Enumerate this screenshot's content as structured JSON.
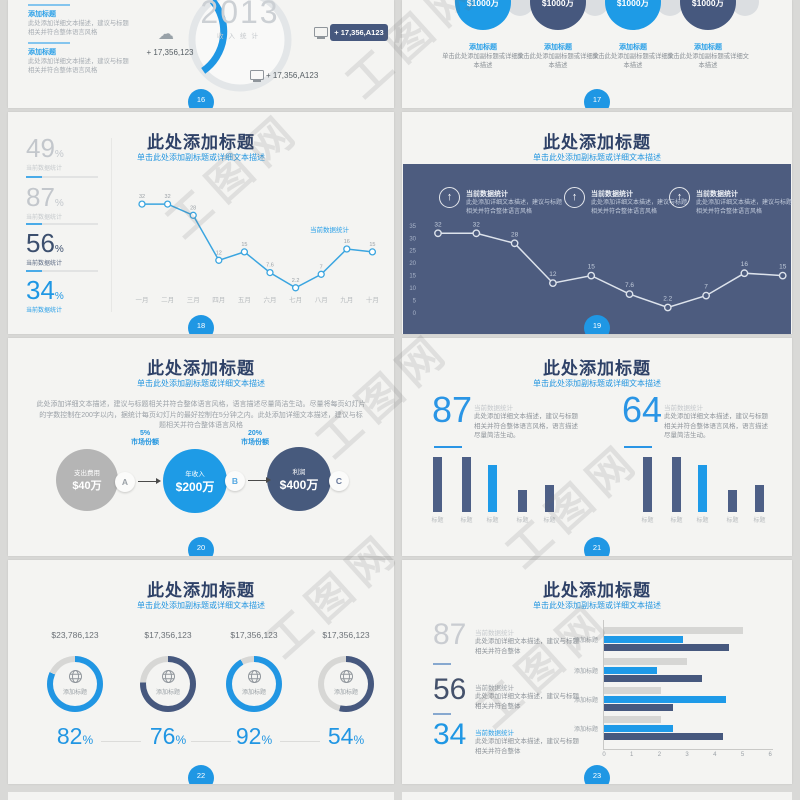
{
  "watermark": {
    "text": "工图网"
  },
  "slides": {
    "s16": {
      "page": "16",
      "year": "2013",
      "year_caption": "收入统计",
      "blocks": [
        {
          "heading": "添加标题",
          "body": "此处添加详细文本描述，建议与标题相关并符合整体语言风格"
        },
        {
          "heading": "添加标题",
          "body": "此处添加详细文本描述，建议与标题相关并符合整体语言风格"
        }
      ],
      "cloud_value": "+ 17,356,123",
      "badge_value": "+ 17,356,A123",
      "screen_value": "+ 17,356,A123"
    },
    "s17": {
      "page": "17",
      "circles": [
        {
          "value": "$1000万",
          "color": "#1e9be6"
        },
        {
          "value": "$1000万",
          "color": "#46587e"
        },
        {
          "value": "$1000万",
          "color": "#1e9be6"
        },
        {
          "value": "$1000万",
          "color": "#46587e"
        }
      ],
      "caption_heading": "添加标题",
      "caption_body": "单击此处添加副标题或详细文本描述"
    },
    "s18": {
      "page": "18",
      "title": "此处添加标题",
      "subtitle": "单击此处添加副标题或详细文本描述",
      "stats": [
        {
          "value": "49",
          "unit": "%",
          "caption": "当前数据统计",
          "color": "#c3c7cc",
          "caption_color": "#c6cacd"
        },
        {
          "value": "87",
          "unit": "%",
          "caption": "当前数据统计",
          "color": "#c3c7cc",
          "caption_color": "#c6cacd"
        },
        {
          "value": "56",
          "unit": "%",
          "caption": "当前数据统计",
          "color": "#3c4f6e",
          "caption_color": "#5d6b84"
        },
        {
          "value": "34",
          "unit": "%",
          "caption": "当前数据统计",
          "color": "#1f97e4",
          "caption_color": "#2aa0e8"
        }
      ],
      "chart_label": "当前数据统计",
      "chart": {
        "type": "line",
        "categories": [
          "一月",
          "二月",
          "三月",
          "四月",
          "五月",
          "六月",
          "七月",
          "八月",
          "九月",
          "十月"
        ],
        "values": [
          32,
          32,
          28,
          12,
          15,
          7.6,
          2.2,
          7,
          16,
          15
        ]
      }
    },
    "s19": {
      "page": "19",
      "title": "此处添加标题",
      "subtitle": "单击此处添加副标题或详细文本描述",
      "panel_items": [
        {
          "heading": "当前数据统计",
          "body": "此处添加详细文本描述，建议与标题相关并符合整体语言风格"
        },
        {
          "heading": "当前数据统计",
          "body": "此处添加详细文本描述，建议与标题相关并符合整体语言风格"
        },
        {
          "heading": "当前数据统计",
          "body": "此处添加详细文本描述，建议与标题相关并符合整体语言风格"
        }
      ],
      "chart": {
        "type": "line",
        "values": [
          32,
          32,
          28,
          12,
          15,
          7.6,
          2.2,
          7,
          16,
          15
        ],
        "yticks": [
          35,
          30,
          25,
          20,
          15,
          10,
          5,
          0
        ]
      }
    },
    "s20": {
      "page": "20",
      "title": "此处添加标题",
      "subtitle": "单击此处添加副标题或详细文本描述",
      "paragraph": "此处添加详细文本描述，建议与标题相关并符合整体语言风格，语言描述尽量简洁生动。尽量将每页幻灯片的字数控制在200字以内，据统计每页幻灯片的最好控制在5分钟之内。此处添加详细文本描述，建议与标题相关并符合整体语言风格",
      "flow_labels": [
        {
          "pct": "5%",
          "text": "市场份额"
        },
        {
          "pct": "20%",
          "text": "市场份额"
        }
      ],
      "flow_circles": [
        {
          "label": "支出费用",
          "value": "$40万",
          "marker": "A",
          "color": "#b5b5b5"
        },
        {
          "label": "年收入",
          "value": "$200万",
          "marker": "B",
          "color": "#1e9be6"
        },
        {
          "label": "利润",
          "value": "$400万",
          "marker": "C",
          "color": "#475a7d"
        }
      ]
    },
    "s21": {
      "page": "21",
      "title": "此处添加标题",
      "subtitle": "单击此处添加副标题或详细文本描述",
      "stats": [
        {
          "value": "87",
          "caption": "当前数据统计",
          "body": "此处添加详细文本描述，建议与标题相关并符合整体语言风格，语言描述尽量简洁生动。"
        },
        {
          "value": "64",
          "caption": "当前数据统计",
          "body": "此处添加详细文本描述，建议与标题相关并符合整体语言风格，语言描述尽量简洁生动。"
        }
      ],
      "bar_chart": {
        "type": "bar",
        "labels": [
          "标题",
          "标题",
          "标题",
          "标题",
          "标题"
        ],
        "values": [
          90,
          90,
          77,
          36,
          44
        ],
        "highlight_index": 2
      }
    },
    "s22": {
      "page": "22",
      "title": "此处添加标题",
      "subtitle": "单击此处添加副标题或详细文本描述",
      "inner_label": "添加标题",
      "donuts": [
        {
          "amount": "$23,786,123",
          "pct": 82,
          "color": "#2196e3"
        },
        {
          "amount": "$17,356,123",
          "pct": 76,
          "color": "#46587e"
        },
        {
          "amount": "$17,356,123",
          "pct": 92,
          "color": "#2196e3"
        },
        {
          "amount": "$17,356,123",
          "pct": 54,
          "color": "#46587e"
        }
      ]
    },
    "s23": {
      "page": "23",
      "title": "此处添加标题",
      "subtitle": "单击此处添加副标题或详细文本描述",
      "stats": [
        {
          "value": "87",
          "color": "#c9ccd1",
          "caption": "当前数据统计",
          "caption_color": "#c6cacd",
          "body": "此处添加详细文本描述，建议与标题相关并符合整体"
        },
        {
          "value": "56",
          "color": "#44516b",
          "caption": "当前数据统计",
          "caption_color": "#9aa0a6",
          "body": "此处添加详细文本描述，建议与标题相关并符合整体"
        },
        {
          "value": "34",
          "color": "#1f97e4",
          "caption": "当前数据统计",
          "caption_color": "#2aa0e8",
          "body": "此处添加详细文本描述，建议与标题相关并符合整体"
        }
      ],
      "hbar": {
        "type": "bar-horizontal",
        "group_label": "添加标题",
        "xticks": [
          0,
          1,
          2,
          3,
          4,
          5,
          6
        ],
        "series_colors": [
          "#d6d6d4",
          "#1e9ae8",
          "#46587e"
        ],
        "groups": [
          [
            5.0,
            2.85,
            4.5
          ],
          [
            3.0,
            1.9,
            3.55
          ],
          [
            2.05,
            4.4,
            2.5
          ],
          [
            2.05,
            2.5,
            4.3
          ]
        ]
      }
    }
  }
}
